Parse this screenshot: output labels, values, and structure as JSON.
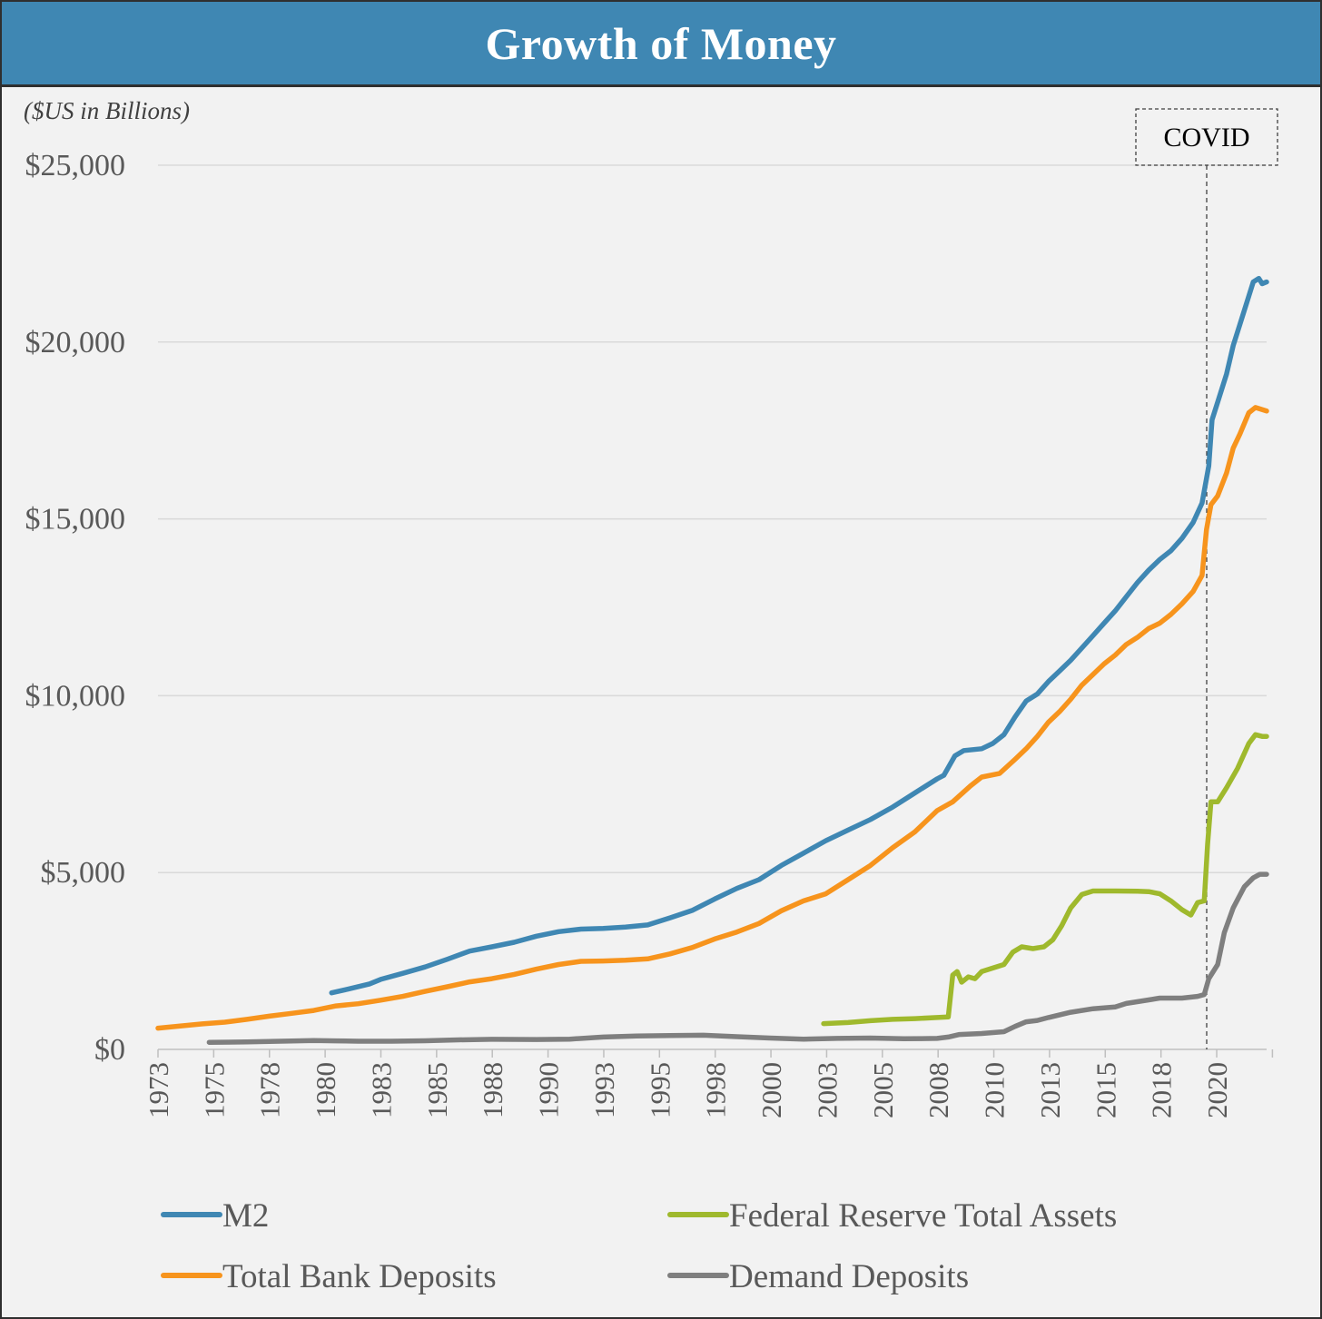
{
  "header": {
    "title": "Growth of Money"
  },
  "chart_data": {
    "type": "line",
    "title": "Growth of Money",
    "subtitle": "($US in Billions)",
    "xlabel": "",
    "ylabel": "",
    "xlim": [
      1973,
      2022.8
    ],
    "ylim": [
      0,
      25000
    ],
    "y_ticks": [
      0,
      5000,
      10000,
      15000,
      20000,
      25000
    ],
    "y_tick_labels": [
      "$0",
      "$5,000",
      "$10,000",
      "$15,000",
      "$20,000",
      "$25,000"
    ],
    "x_tick_labels": [
      "1973",
      "1975",
      "1978",
      "1980",
      "1983",
      "1985",
      "1988",
      "1990",
      "1993",
      "1995",
      "1998",
      "2000",
      "2003",
      "2005",
      "2008",
      "2010",
      "2013",
      "2015",
      "2018",
      "2020"
    ],
    "grid": "horizontal",
    "legend_position": "bottom",
    "annotations": [
      {
        "text": "COVID",
        "x": 2020.0,
        "style": "dashed vertical line"
      }
    ],
    "series": [
      {
        "name": "M2",
        "color": "#3f87b3",
        "points": [
          [
            1980.8,
            1600
          ],
          [
            1981.5,
            1700
          ],
          [
            1982.5,
            1850
          ],
          [
            1983.0,
            1980
          ],
          [
            1984.0,
            2150
          ],
          [
            1985.0,
            2330
          ],
          [
            1986.0,
            2550
          ],
          [
            1987.0,
            2780
          ],
          [
            1988.0,
            2900
          ],
          [
            1989.0,
            3030
          ],
          [
            1990.0,
            3200
          ],
          [
            1991.0,
            3330
          ],
          [
            1992.0,
            3400
          ],
          [
            1993.0,
            3420
          ],
          [
            1994.0,
            3460
          ],
          [
            1995.0,
            3520
          ],
          [
            1996.0,
            3720
          ],
          [
            1997.0,
            3930
          ],
          [
            1998.0,
            4250
          ],
          [
            1999.0,
            4550
          ],
          [
            2000.0,
            4800
          ],
          [
            2001.0,
            5200
          ],
          [
            2002.0,
            5550
          ],
          [
            2003.0,
            5900
          ],
          [
            2004.0,
            6200
          ],
          [
            2005.0,
            6500
          ],
          [
            2006.0,
            6850
          ],
          [
            2007.0,
            7250
          ],
          [
            2008.0,
            7650
          ],
          [
            2008.3,
            7750
          ],
          [
            2008.8,
            8300
          ],
          [
            2009.2,
            8450
          ],
          [
            2010.0,
            8500
          ],
          [
            2010.5,
            8650
          ],
          [
            2011.0,
            8900
          ],
          [
            2011.5,
            9400
          ],
          [
            2012.0,
            9850
          ],
          [
            2012.5,
            10050
          ],
          [
            2013.0,
            10400
          ],
          [
            2013.5,
            10700
          ],
          [
            2014.0,
            11000
          ],
          [
            2014.5,
            11350
          ],
          [
            2015.0,
            11700
          ],
          [
            2015.5,
            12050
          ],
          [
            2016.0,
            12400
          ],
          [
            2016.5,
            12800
          ],
          [
            2017.0,
            13200
          ],
          [
            2017.5,
            13550
          ],
          [
            2018.0,
            13850
          ],
          [
            2018.5,
            14100
          ],
          [
            2019.0,
            14450
          ],
          [
            2019.5,
            14900
          ],
          [
            2019.9,
            15450
          ],
          [
            2020.2,
            16500
          ],
          [
            2020.35,
            17800
          ],
          [
            2020.6,
            18300
          ],
          [
            2021.0,
            19100
          ],
          [
            2021.3,
            19900
          ],
          [
            2021.6,
            20500
          ],
          [
            2022.0,
            21300
          ],
          [
            2022.2,
            21700
          ],
          [
            2022.45,
            21800
          ],
          [
            2022.6,
            21650
          ],
          [
            2022.8,
            21700
          ]
        ]
      },
      {
        "name": "Total Bank Deposits",
        "color": "#f7941d",
        "points": [
          [
            1973.0,
            600
          ],
          [
            1974.0,
            660
          ],
          [
            1975.0,
            720
          ],
          [
            1976.0,
            770
          ],
          [
            1977.0,
            850
          ],
          [
            1978.0,
            940
          ],
          [
            1979.0,
            1020
          ],
          [
            1980.0,
            1100
          ],
          [
            1981.0,
            1230
          ],
          [
            1982.0,
            1290
          ],
          [
            1983.0,
            1390
          ],
          [
            1984.0,
            1500
          ],
          [
            1985.0,
            1640
          ],
          [
            1986.0,
            1770
          ],
          [
            1987.0,
            1910
          ],
          [
            1988.0,
            2000
          ],
          [
            1989.0,
            2120
          ],
          [
            1990.0,
            2270
          ],
          [
            1991.0,
            2400
          ],
          [
            1992.0,
            2490
          ],
          [
            1993.0,
            2500
          ],
          [
            1994.0,
            2520
          ],
          [
            1995.0,
            2560
          ],
          [
            1996.0,
            2700
          ],
          [
            1997.0,
            2880
          ],
          [
            1998.0,
            3120
          ],
          [
            1999.0,
            3320
          ],
          [
            2000.0,
            3560
          ],
          [
            2001.0,
            3920
          ],
          [
            2002.0,
            4200
          ],
          [
            2003.0,
            4400
          ],
          [
            2004.0,
            4800
          ],
          [
            2005.0,
            5200
          ],
          [
            2006.0,
            5700
          ],
          [
            2007.0,
            6150
          ],
          [
            2008.0,
            6750
          ],
          [
            2008.7,
            7000
          ],
          [
            2009.5,
            7450
          ],
          [
            2010.0,
            7700
          ],
          [
            2010.8,
            7800
          ],
          [
            2011.5,
            8200
          ],
          [
            2012.0,
            8500
          ],
          [
            2012.5,
            8850
          ],
          [
            2013.0,
            9250
          ],
          [
            2013.5,
            9550
          ],
          [
            2014.0,
            9900
          ],
          [
            2014.5,
            10300
          ],
          [
            2015.0,
            10600
          ],
          [
            2015.5,
            10900
          ],
          [
            2016.0,
            11150
          ],
          [
            2016.5,
            11450
          ],
          [
            2017.0,
            11650
          ],
          [
            2017.5,
            11900
          ],
          [
            2018.0,
            12050
          ],
          [
            2018.5,
            12300
          ],
          [
            2019.0,
            12600
          ],
          [
            2019.5,
            12950
          ],
          [
            2019.9,
            13400
          ],
          [
            2020.1,
            14700
          ],
          [
            2020.3,
            15400
          ],
          [
            2020.6,
            15650
          ],
          [
            2021.0,
            16300
          ],
          [
            2021.3,
            17000
          ],
          [
            2021.6,
            17400
          ],
          [
            2022.0,
            18000
          ],
          [
            2022.3,
            18150
          ],
          [
            2022.8,
            18050
          ]
        ]
      },
      {
        "name": "Federal Reserve Total Assets",
        "color": "#9fb92d",
        "points": [
          [
            2002.9,
            730
          ],
          [
            2004.0,
            760
          ],
          [
            2005.0,
            810
          ],
          [
            2006.0,
            850
          ],
          [
            2007.0,
            870
          ],
          [
            2008.0,
            900
          ],
          [
            2008.5,
            920
          ],
          [
            2008.7,
            2100
          ],
          [
            2008.9,
            2200
          ],
          [
            2009.1,
            1900
          ],
          [
            2009.4,
            2050
          ],
          [
            2009.7,
            2000
          ],
          [
            2010.0,
            2200
          ],
          [
            2010.5,
            2300
          ],
          [
            2011.0,
            2400
          ],
          [
            2011.4,
            2750
          ],
          [
            2011.8,
            2900
          ],
          [
            2012.3,
            2850
          ],
          [
            2012.8,
            2900
          ],
          [
            2013.2,
            3100
          ],
          [
            2013.6,
            3500
          ],
          [
            2014.0,
            4000
          ],
          [
            2014.5,
            4380
          ],
          [
            2015.0,
            4480
          ],
          [
            2016.0,
            4480
          ],
          [
            2017.0,
            4470
          ],
          [
            2017.5,
            4460
          ],
          [
            2018.0,
            4400
          ],
          [
            2018.5,
            4200
          ],
          [
            2019.0,
            3950
          ],
          [
            2019.4,
            3800
          ],
          [
            2019.7,
            4150
          ],
          [
            2020.0,
            4200
          ],
          [
            2020.15,
            5800
          ],
          [
            2020.3,
            7000
          ],
          [
            2020.6,
            7000
          ],
          [
            2021.0,
            7400
          ],
          [
            2021.5,
            7950
          ],
          [
            2022.0,
            8650
          ],
          [
            2022.3,
            8900
          ],
          [
            2022.6,
            8850
          ],
          [
            2022.8,
            8850
          ]
        ]
      },
      {
        "name": "Demand Deposits",
        "color": "#7f7f7f",
        "points": [
          [
            1975.3,
            200
          ],
          [
            1977.0,
            210
          ],
          [
            1978.5,
            230
          ],
          [
            1980.0,
            250
          ],
          [
            1981.0,
            240
          ],
          [
            1982.0,
            230
          ],
          [
            1983.5,
            230
          ],
          [
            1985.0,
            245
          ],
          [
            1986.5,
            270
          ],
          [
            1988.0,
            285
          ],
          [
            1990.0,
            280
          ],
          [
            1991.5,
            290
          ],
          [
            1993.0,
            350
          ],
          [
            1994.5,
            380
          ],
          [
            1996.0,
            390
          ],
          [
            1997.5,
            400
          ],
          [
            1999.0,
            360
          ],
          [
            2000.5,
            320
          ],
          [
            2002.0,
            290
          ],
          [
            2003.5,
            310
          ],
          [
            2005.0,
            320
          ],
          [
            2006.5,
            300
          ],
          [
            2008.0,
            310
          ],
          [
            2008.5,
            350
          ],
          [
            2009.0,
            420
          ],
          [
            2010.0,
            450
          ],
          [
            2011.0,
            500
          ],
          [
            2011.5,
            650
          ],
          [
            2012.0,
            780
          ],
          [
            2012.5,
            820
          ],
          [
            2013.0,
            900
          ],
          [
            2014.0,
            1050
          ],
          [
            2015.0,
            1150
          ],
          [
            2016.0,
            1200
          ],
          [
            2016.5,
            1300
          ],
          [
            2017.5,
            1400
          ],
          [
            2018.0,
            1450
          ],
          [
            2019.0,
            1450
          ],
          [
            2019.7,
            1500
          ],
          [
            2020.0,
            1550
          ],
          [
            2020.2,
            2000
          ],
          [
            2020.6,
            2400
          ],
          [
            2020.9,
            3300
          ],
          [
            2021.3,
            4000
          ],
          [
            2021.8,
            4600
          ],
          [
            2022.2,
            4850
          ],
          [
            2022.5,
            4950
          ],
          [
            2022.8,
            4950
          ]
        ]
      }
    ]
  }
}
